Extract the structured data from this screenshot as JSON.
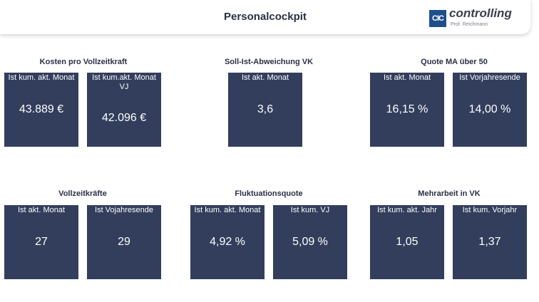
{
  "header": {
    "title": "Personalcockpit",
    "logo": {
      "mark": "CIC",
      "word": "controlling",
      "subtitle": "Prof. Reichmann"
    }
  },
  "groups": {
    "kosten": {
      "title": "Kosten pro Vollzeitkraft",
      "tiles": [
        {
          "label": "Ist kum. akt. Monat",
          "value": "43.889 €"
        },
        {
          "label": "Ist kum.akt. Monat VJ",
          "value": "42.096 €"
        }
      ]
    },
    "soll_ist": {
      "title": "Soll-Ist-Abweichung VK",
      "tiles": [
        {
          "label": "Ist akt. Monat",
          "value": "3,6"
        }
      ]
    },
    "quote_ma": {
      "title": "Quote MA über 50",
      "tiles": [
        {
          "label": "Ist akt. Monat",
          "value": "16,15 %"
        },
        {
          "label": "Ist Vorjahresende",
          "value": "14,00 %"
        }
      ]
    },
    "vollzeit": {
      "title": "Vollzeitkräfte",
      "tiles": [
        {
          "label": "Ist akt. Monat",
          "value": "27"
        },
        {
          "label": "Ist Vojahresende",
          "value": "29"
        }
      ]
    },
    "fluktuation": {
      "title": "Fluktuationsquote",
      "tiles": [
        {
          "label": "Ist kum. akt. Monat",
          "value": "4,92 %"
        },
        {
          "label": "Ist kum. VJ",
          "value": "5,09 %"
        }
      ]
    },
    "mehrarbeit": {
      "title": "Mehrarbeit in VK",
      "tiles": [
        {
          "label": "Ist kum. akt. Jahr",
          "value": "1,05"
        },
        {
          "label": "Ist kum. Vorjahr",
          "value": "1,37"
        }
      ]
    }
  },
  "colors": {
    "tile": "#323e5c",
    "title": "#2b2f45",
    "logo": "#1f4f8b"
  }
}
